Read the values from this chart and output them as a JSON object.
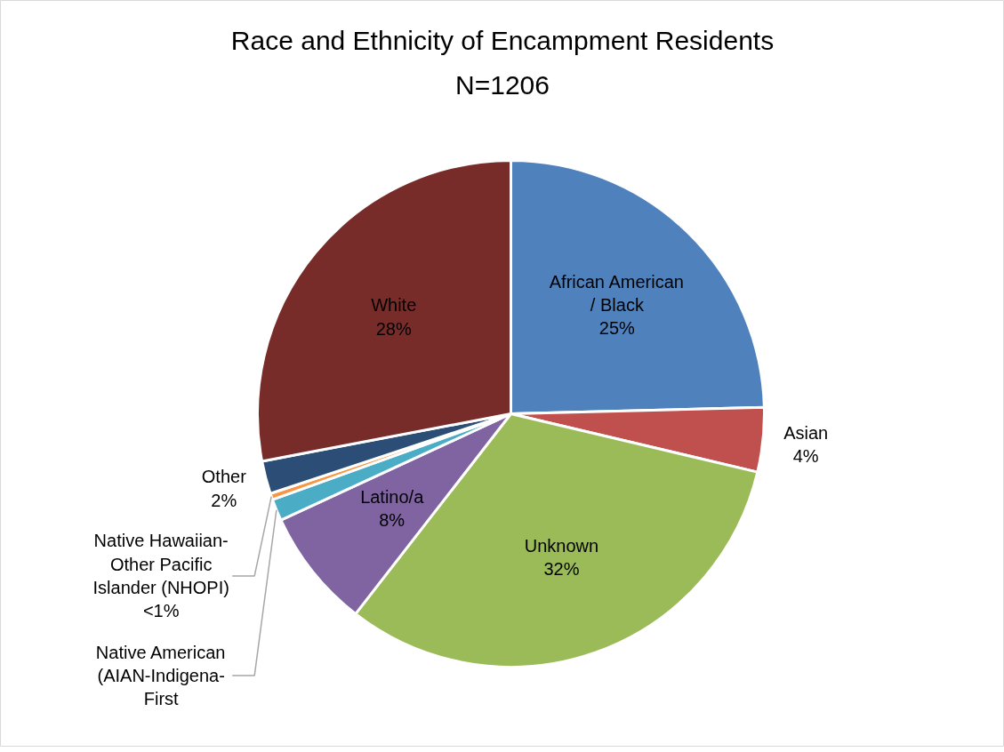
{
  "chart_data": {
    "type": "pie",
    "title": "Race and Ethnicity of Encampment Residents",
    "subtitle": "N=1206",
    "categories": [
      "African American / Black",
      "Asian",
      "Unknown",
      "Latino/a",
      "Native American (AIAN-Indigena-First",
      "Native Hawaiian-Other Pacific Islander (NHOPI)",
      "Other",
      "White"
    ],
    "values": [
      24.6,
      4.1,
      31.8,
      7.6,
      1.4,
      0.4,
      2.1,
      28.0
    ],
    "colors": [
      "#4f81bd",
      "#c0504d",
      "#9bbb59",
      "#8064a2",
      "#4bacc6",
      "#f79646",
      "#2c4d75",
      "#772c2a"
    ],
    "value_labels": [
      "25%",
      "4%",
      "32%",
      "8%",
      null,
      "<1%",
      "2%",
      "28%"
    ]
  }
}
